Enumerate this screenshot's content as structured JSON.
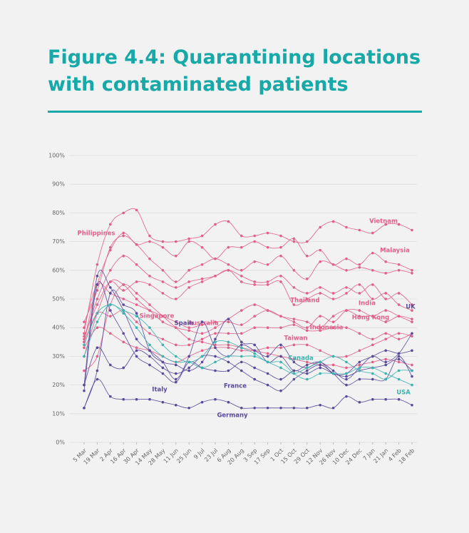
{
  "chart_data": {
    "type": "line",
    "title": "Figure 4.4: Quarantining locations with contaminated patients",
    "categories": [
      "5 Mar",
      "19 Mar",
      "2 Apr",
      "16 Apr",
      "30 Apr",
      "14 May",
      "28 May",
      "11 Jun",
      "25 Jun",
      "9 Jul",
      "23 Jul",
      "6 Aug",
      "20 Aug",
      "3 Sep",
      "17 Sep",
      "1 Oct",
      "15 Oct",
      "29 Oct",
      "12 Nov",
      "26 Nov",
      "10 Dec",
      "24 Dec",
      "7 Jan",
      "21 Jan",
      "4 Feb",
      "18 Feb"
    ],
    "ylim": [
      0,
      100
    ],
    "yticks": [
      {
        "value": 0,
        "label": "0%"
      },
      {
        "value": 10,
        "label": "10%"
      },
      {
        "value": 20,
        "label": "20%"
      },
      {
        "value": 30,
        "label": "30%"
      },
      {
        "value": 40,
        "label": "40%"
      },
      {
        "value": 50,
        "label": "50%"
      },
      {
        "value": 60,
        "label": "60%"
      },
      {
        "value": 70,
        "label": "70%"
      },
      {
        "value": 80,
        "label": "80%"
      },
      {
        "value": 90,
        "label": "90%"
      },
      {
        "value": 100,
        "label": "100%"
      }
    ],
    "grid": true,
    "series": [
      {
        "name": "Vietnam",
        "color": "#e0608a",
        "values": [
          38,
          62,
          76,
          80,
          81,
          72,
          70,
          70,
          71,
          72,
          76,
          77,
          72,
          72,
          73,
          72,
          70,
          70,
          75,
          77,
          75,
          74,
          73,
          76,
          76,
          74
        ]
      },
      {
        "name": "Malaysia",
        "color": "#e0608a",
        "values": [
          35,
          55,
          67,
          73,
          69,
          70,
          68,
          65,
          70,
          68,
          64,
          68,
          68,
          70,
          68,
          68,
          71,
          65,
          67,
          62,
          64,
          62,
          66,
          63,
          62,
          60
        ]
      },
      {
        "name": "Philippines",
        "color": "#e0608a",
        "values": [
          42,
          53,
          68,
          72,
          69,
          64,
          60,
          56,
          60,
          62,
          64,
          62,
          60,
          63,
          62,
          65,
          60,
          57,
          63,
          62,
          60,
          61,
          60,
          59,
          60,
          59
        ]
      },
      {
        "name": "Australia",
        "color": "#e0608a",
        "values": [
          30,
          45,
          56,
          55,
          50,
          46,
          42,
          40,
          39,
          38,
          40,
          43,
          46,
          48,
          46,
          44,
          43,
          42,
          40,
          44,
          46,
          44,
          44,
          42,
          44,
          43
        ]
      },
      {
        "name": "Singapore",
        "color": "#e0608a",
        "values": [
          25,
          30,
          48,
          55,
          52,
          48,
          44,
          40,
          36,
          35,
          34,
          34,
          33,
          32,
          31,
          30,
          29,
          28,
          27,
          27,
          26,
          27,
          28,
          29,
          28,
          27
        ]
      },
      {
        "name": "Thailand",
        "color": "#e0608a",
        "values": [
          37,
          48,
          56,
          53,
          56,
          55,
          52,
          50,
          54,
          56,
          58,
          60,
          56,
          55,
          55,
          56,
          48,
          50,
          52,
          50,
          52,
          55,
          50,
          52,
          48,
          46
        ]
      },
      {
        "name": "India",
        "color": "#e0608a",
        "values": [
          36,
          50,
          60,
          65,
          62,
          58,
          56,
          54,
          56,
          57,
          58,
          60,
          58,
          56,
          56,
          58,
          54,
          52,
          54,
          52,
          54,
          52,
          55,
          50,
          52,
          48
        ]
      },
      {
        "name": "Hong Kong",
        "color": "#e0608a",
        "values": [
          40,
          55,
          52,
          50,
          48,
          46,
          44,
          42,
          40,
          41,
          42,
          42,
          41,
          44,
          46,
          44,
          42,
          40,
          44,
          42,
          46,
          46,
          44,
          46,
          44,
          42
        ]
      },
      {
        "name": "Indonesia",
        "color": "#e0608a",
        "values": [
          35,
          45,
          44,
          46,
          42,
          38,
          36,
          34,
          34,
          36,
          38,
          38,
          38,
          40,
          40,
          40,
          41,
          39,
          39,
          40,
          40,
          38,
          36,
          38,
          36,
          38
        ]
      },
      {
        "name": "Taiwan",
        "color": "#e0608a",
        "values": [
          33,
          40,
          38,
          35,
          33,
          32,
          30,
          28,
          30,
          32,
          33,
          33,
          32,
          32,
          33,
          33,
          34,
          34,
          32,
          30,
          30,
          32,
          34,
          36,
          38,
          37
        ]
      },
      {
        "name": "UK",
        "color": "#5b4a9b",
        "values": [
          12,
          25,
          52,
          48,
          45,
          32,
          28,
          27,
          25,
          28,
          36,
          43,
          35,
          34,
          28,
          30,
          25,
          27,
          28,
          25,
          22,
          26,
          30,
          28,
          31,
          38
        ]
      },
      {
        "name": "Spain",
        "color": "#5b4a9b",
        "values": [
          20,
          58,
          54,
          46,
          36,
          32,
          28,
          22,
          30,
          42,
          33,
          30,
          34,
          32,
          30,
          34,
          28,
          26,
          28,
          24,
          24,
          28,
          30,
          32,
          31,
          32
        ]
      },
      {
        "name": "Italy",
        "color": "#5b4a9b",
        "values": [
          18,
          55,
          46,
          38,
          30,
          27,
          24,
          21,
          28,
          26,
          25,
          25,
          28,
          26,
          24,
          22,
          25,
          24,
          26,
          24,
          23,
          25,
          26,
          27,
          29,
          25
        ]
      },
      {
        "name": "France",
        "color": "#5b4a9b",
        "values": [
          20,
          33,
          27,
          26,
          32,
          30,
          26,
          24,
          26,
          30,
          30,
          28,
          25,
          22,
          20,
          18,
          22,
          25,
          27,
          24,
          20,
          22,
          22,
          22,
          30,
          23
        ]
      },
      {
        "name": "Germany",
        "color": "#5b4a9b",
        "values": [
          12,
          22,
          16,
          15,
          15,
          15,
          14,
          13,
          12,
          14,
          15,
          14,
          12,
          12,
          12,
          12,
          12,
          12,
          13,
          12,
          16,
          14,
          15,
          15,
          15,
          13
        ]
      },
      {
        "name": "Canada",
        "color": "#3bb3b0",
        "values": [
          30,
          42,
          48,
          45,
          40,
          34,
          30,
          28,
          28,
          26,
          28,
          30,
          30,
          30,
          28,
          26,
          24,
          26,
          28,
          30,
          28,
          25,
          24,
          22,
          25,
          25
        ]
      },
      {
        "name": "USA",
        "color": "#3bb3b0",
        "values": [
          34,
          45,
          48,
          46,
          44,
          40,
          34,
          30,
          28,
          30,
          35,
          35,
          33,
          31,
          28,
          28,
          24,
          22,
          24,
          24,
          24,
          26,
          26,
          24,
          22,
          20
        ]
      }
    ]
  }
}
